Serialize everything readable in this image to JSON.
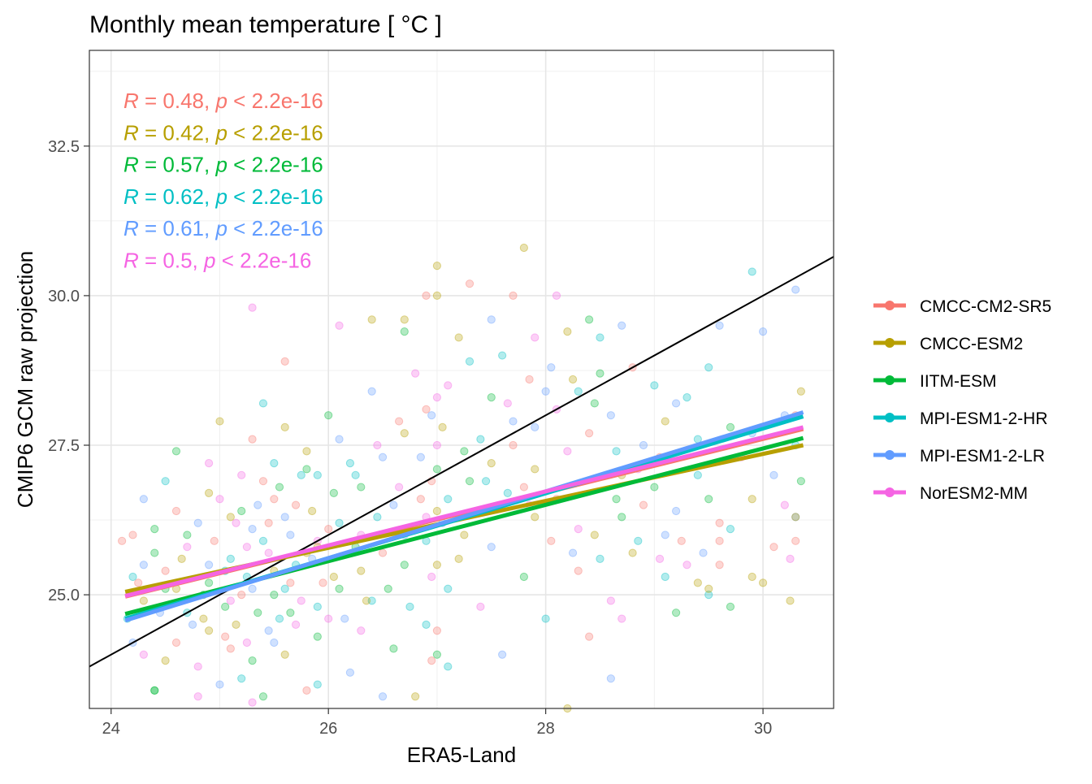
{
  "chart_data": {
    "type": "scatter",
    "title": "Monthly mean temperature [ °C ]",
    "xlabel": "ERA5-Land",
    "ylabel": "CMIP6 GCM raw projection",
    "xlim": [
      23.8,
      30.65
    ],
    "ylim": [
      23.1,
      34.1
    ],
    "x_ticks": [
      24,
      26,
      28,
      30
    ],
    "x_tick_labels": [
      "24",
      "26",
      "28",
      "30"
    ],
    "y_ticks": [
      25.0,
      27.5,
      30.0,
      32.5
    ],
    "y_tick_labels": [
      "25.0",
      "27.5",
      "30.0",
      "32.5"
    ],
    "grid": true,
    "theme": "bw",
    "legend_position": "right",
    "point_alpha": 0.3,
    "identity_line": {
      "slope": 1,
      "intercept": 0,
      "color": "#000000"
    },
    "series": [
      {
        "name": "CMCC-CM2-SR5",
        "color": "#F8766D",
        "fit_x": [
          24.13,
          30.37
        ],
        "fit_y": [
          24.97,
          27.77
        ],
        "stat_label": [
          "R",
          " = 0.48, ",
          "p",
          " < 2.2e-16"
        ]
      },
      {
        "name": "CMCC-ESM2",
        "color": "#B79F00",
        "fit_x": [
          24.13,
          30.37
        ],
        "fit_y": [
          25.05,
          27.5
        ],
        "stat_label": [
          "R",
          " = 0.42, ",
          "p",
          " < 2.2e-16"
        ]
      },
      {
        "name": "IITM-ESM",
        "color": "#00BA38",
        "fit_x": [
          24.13,
          30.37
        ],
        "fit_y": [
          24.68,
          27.62
        ],
        "stat_label": [
          "R",
          " = 0.57, ",
          "p",
          " < 2.2e-16"
        ]
      },
      {
        "name": "MPI-ESM1-2-HR",
        "color": "#00BFC4",
        "fit_x": [
          24.13,
          30.37
        ],
        "fit_y": [
          24.6,
          27.98
        ],
        "stat_label": [
          "R",
          " = 0.62, ",
          "p",
          " < 2.2e-16"
        ]
      },
      {
        "name": "MPI-ESM1-2-LR",
        "color": "#619CFF",
        "fit_x": [
          24.13,
          30.37
        ],
        "fit_y": [
          24.57,
          28.05
        ],
        "stat_label": [
          "R",
          " = 0.61, ",
          "p",
          " < 2.2e-16"
        ]
      },
      {
        "name": "NorESM2-MM",
        "color": "#F564E3",
        "fit_x": [
          24.13,
          30.37
        ],
        "fit_y": [
          24.98,
          27.8
        ],
        "stat_label": [
          "R",
          " = 0.5, ",
          "p",
          " < 2.2e-16"
        ]
      }
    ],
    "points": [
      [
        25.3,
        29.8,
        5
      ],
      [
        27.8,
        30.8,
        1
      ],
      [
        27.0,
        30.5,
        1
      ],
      [
        26.9,
        30.0,
        0
      ],
      [
        27.0,
        30.0,
        1
      ],
      [
        29.9,
        30.4,
        3
      ],
      [
        30.3,
        30.1,
        4
      ],
      [
        30.0,
        29.4,
        4
      ],
      [
        29.6,
        29.5,
        4
      ],
      [
        28.4,
        29.6,
        2
      ],
      [
        27.3,
        30.2,
        0
      ],
      [
        27.7,
        30.0,
        0
      ],
      [
        28.1,
        30.0,
        5
      ],
      [
        26.4,
        29.6,
        1
      ],
      [
        26.7,
        29.6,
        1
      ],
      [
        28.2,
        29.4,
        1
      ],
      [
        28.5,
        29.3,
        3
      ],
      [
        27.9,
        29.3,
        5
      ],
      [
        28.7,
        29.5,
        4
      ],
      [
        24.2,
        26.0,
        0
      ],
      [
        24.1,
        25.9,
        0
      ],
      [
        24.4,
        26.1,
        2
      ],
      [
        24.6,
        26.4,
        0
      ],
      [
        24.9,
        26.7,
        1
      ],
      [
        25.2,
        27.0,
        5
      ],
      [
        25.5,
        27.2,
        3
      ],
      [
        25.8,
        27.4,
        1
      ],
      [
        26.1,
        27.6,
        4
      ],
      [
        24.3,
        25.5,
        4
      ],
      [
        24.5,
        25.1,
        2
      ],
      [
        24.7,
        24.7,
        3
      ],
      [
        24.9,
        24.4,
        1
      ],
      [
        25.1,
        24.1,
        0
      ],
      [
        25.3,
        23.9,
        2
      ],
      [
        25.5,
        24.2,
        4
      ],
      [
        25.7,
        24.5,
        5
      ],
      [
        25.9,
        24.8,
        3
      ],
      [
        26.1,
        25.1,
        2
      ],
      [
        26.3,
        25.4,
        1
      ],
      [
        26.5,
        25.7,
        0
      ],
      [
        26.7,
        26.0,
        4
      ],
      [
        26.9,
        26.3,
        5
      ],
      [
        27.1,
        26.6,
        3
      ],
      [
        27.3,
        26.9,
        2
      ],
      [
        27.5,
        27.2,
        1
      ],
      [
        27.7,
        27.5,
        0
      ],
      [
        27.9,
        27.8,
        4
      ],
      [
        28.1,
        28.1,
        5
      ],
      [
        28.3,
        28.4,
        3
      ],
      [
        28.5,
        28.7,
        2
      ],
      [
        28.7,
        27.0,
        1
      ],
      [
        28.9,
        26.5,
        0
      ],
      [
        29.1,
        26.0,
        4
      ],
      [
        29.3,
        25.5,
        5
      ],
      [
        29.5,
        25.0,
        3
      ],
      [
        29.7,
        24.8,
        2
      ],
      [
        29.9,
        25.3,
        1
      ],
      [
        30.1,
        25.8,
        0
      ],
      [
        30.3,
        26.3,
        4
      ],
      [
        30.35,
        26.9,
        2
      ],
      [
        30.3,
        27.5,
        3
      ],
      [
        30.2,
        28.0,
        4
      ],
      [
        30.35,
        28.4,
        1
      ],
      [
        29.8,
        27.3,
        5
      ],
      [
        29.6,
        26.2,
        0
      ],
      [
        29.4,
        27.6,
        3
      ],
      [
        29.2,
        28.2,
        4
      ],
      [
        29.0,
        26.8,
        2
      ],
      [
        28.8,
        25.7,
        1
      ],
      [
        28.6,
        24.9,
        5
      ],
      [
        28.4,
        24.3,
        0
      ],
      [
        28.2,
        23.1,
        1
      ],
      [
        28.0,
        24.6,
        3
      ],
      [
        27.8,
        25.3,
        2
      ],
      [
        27.6,
        24.0,
        4
      ],
      [
        27.4,
        24.8,
        5
      ],
      [
        27.2,
        25.6,
        1
      ],
      [
        27.0,
        24.4,
        0
      ],
      [
        26.8,
        23.3,
        1
      ],
      [
        26.6,
        24.1,
        2
      ],
      [
        26.4,
        24.9,
        3
      ],
      [
        26.2,
        23.7,
        4
      ],
      [
        26.0,
        24.6,
        5
      ],
      [
        25.8,
        23.4,
        0
      ],
      [
        25.6,
        24.0,
        1
      ],
      [
        25.4,
        23.3,
        2
      ],
      [
        25.2,
        23.6,
        3
      ],
      [
        25.0,
        23.5,
        4
      ],
      [
        24.8,
        23.8,
        5
      ],
      [
        24.6,
        24.2,
        0
      ],
      [
        24.4,
        23.4,
        2
      ],
      [
        24.2,
        24.2,
        4
      ],
      [
        24.15,
        24.6,
        3
      ],
      [
        24.3,
        24.9,
        1
      ],
      [
        24.5,
        25.4,
        0
      ],
      [
        24.7,
        25.8,
        5
      ],
      [
        24.9,
        25.2,
        2
      ],
      [
        25.1,
        25.6,
        3
      ],
      [
        25.3,
        26.1,
        4
      ],
      [
        25.5,
        25.4,
        1
      ],
      [
        25.7,
        26.5,
        0
      ],
      [
        25.9,
        25.9,
        5
      ],
      [
        26.1,
        26.2,
        3
      ],
      [
        26.3,
        26.8,
        2
      ],
      [
        26.5,
        27.3,
        4
      ],
      [
        26.7,
        27.7,
        1
      ],
      [
        26.9,
        28.1,
        0
      ],
      [
        27.1,
        28.5,
        5
      ],
      [
        27.3,
        28.9,
        3
      ],
      [
        27.5,
        28.3,
        2
      ],
      [
        27.7,
        27.9,
        4
      ],
      [
        27.9,
        27.1,
        1
      ],
      [
        28.1,
        26.6,
        0
      ],
      [
        28.3,
        26.1,
        5
      ],
      [
        28.5,
        25.6,
        3
      ],
      [
        28.7,
        26.3,
        2
      ],
      [
        28.9,
        27.5,
        4
      ],
      [
        29.1,
        27.9,
        1
      ],
      [
        29.3,
        28.3,
        3
      ],
      [
        29.5,
        28.8,
        3
      ],
      [
        29.7,
        27.8,
        2
      ],
      [
        29.9,
        26.6,
        1
      ],
      [
        30.1,
        27.0,
        4
      ],
      [
        30.2,
        26.5,
        5
      ],
      [
        29.6,
        25.9,
        0
      ],
      [
        29.4,
        25.2,
        1
      ],
      [
        29.2,
        24.7,
        2
      ],
      [
        28.6,
        23.6,
        4
      ],
      [
        27.1,
        23.8,
        3
      ],
      [
        26.5,
        23.3,
        4
      ],
      [
        26.3,
        24.4,
        5
      ],
      [
        25.9,
        24.3,
        2
      ],
      [
        25.6,
        25.1,
        3
      ],
      [
        25.2,
        25.0,
        0
      ],
      [
        24.9,
        25.5,
        4
      ],
      [
        24.6,
        25.1,
        1
      ],
      [
        24.4,
        25.7,
        2
      ],
      [
        24.2,
        25.3,
        3
      ],
      [
        24.8,
        26.2,
        4
      ],
      [
        25.0,
        26.6,
        5
      ],
      [
        25.4,
        26.9,
        0
      ],
      [
        25.8,
        27.1,
        2
      ],
      [
        26.2,
        27.2,
        3
      ],
      [
        26.6,
        26.5,
        4
      ],
      [
        27.0,
        27.1,
        2
      ],
      [
        27.4,
        27.6,
        3
      ],
      [
        27.8,
        26.8,
        0
      ],
      [
        28.2,
        27.4,
        5
      ],
      [
        28.6,
        28.0,
        4
      ],
      [
        29.0,
        28.5,
        3
      ],
      [
        28.8,
        28.8,
        0
      ],
      [
        27.6,
        29.0,
        3
      ],
      [
        27.2,
        29.3,
        1
      ],
      [
        26.8,
        28.7,
        5
      ],
      [
        26.4,
        28.4,
        4
      ],
      [
        26.0,
        28.0,
        2
      ],
      [
        25.6,
        27.8,
        1
      ],
      [
        25.3,
        27.6,
        0
      ],
      [
        24.9,
        27.2,
        5
      ],
      [
        24.5,
        26.9,
        3
      ],
      [
        24.3,
        26.6,
        4
      ],
      [
        24.7,
        26.0,
        2
      ],
      [
        25.1,
        26.3,
        1
      ],
      [
        25.5,
        26.6,
        0
      ],
      [
        25.9,
        27.0,
        3
      ],
      [
        26.3,
        26.0,
        5
      ],
      [
        26.7,
        25.5,
        2
      ],
      [
        27.1,
        25.1,
        3
      ],
      [
        27.5,
        25.8,
        4
      ],
      [
        27.9,
        26.3,
        1
      ],
      [
        28.3,
        25.4,
        0
      ],
      [
        28.7,
        24.6,
        5
      ],
      [
        29.1,
        25.3,
        3
      ],
      [
        29.5,
        26.6,
        2
      ],
      [
        29.9,
        27.7,
        4
      ],
      [
        30.3,
        28.0,
        0
      ],
      [
        30.25,
        24.9,
        1
      ],
      [
        30.25,
        25.6,
        5
      ],
      [
        29.4,
        27.0,
        3
      ],
      [
        29.2,
        26.4,
        4
      ],
      [
        28.4,
        27.7,
        0
      ],
      [
        28.0,
        28.4,
        4
      ],
      [
        27.5,
        29.6,
        4
      ],
      [
        26.7,
        29.4,
        2
      ],
      [
        26.1,
        29.5,
        5
      ],
      [
        25.6,
        28.9,
        0
      ],
      [
        25.4,
        28.2,
        3
      ],
      [
        25.0,
        27.9,
        1
      ],
      [
        24.6,
        27.4,
        2
      ],
      [
        24.3,
        24.0,
        5
      ],
      [
        24.5,
        23.9,
        1
      ],
      [
        24.75,
        24.5,
        4
      ],
      [
        25.05,
        24.8,
        2
      ],
      [
        25.25,
        25.3,
        3
      ],
      [
        25.45,
        25.7,
        5
      ],
      [
        25.65,
        25.2,
        0
      ],
      [
        25.85,
        25.6,
        4
      ],
      [
        26.05,
        25.3,
        1
      ],
      [
        26.25,
        25.8,
        2
      ],
      [
        26.45,
        26.3,
        3
      ],
      [
        26.65,
        26.8,
        5
      ],
      [
        26.85,
        26.6,
        0
      ],
      [
        27.05,
        26.2,
        4
      ],
      [
        27.25,
        26.0,
        1
      ],
      [
        27.45,
        26.4,
        2
      ],
      [
        27.65,
        26.7,
        3
      ],
      [
        27.85,
        26.5,
        5
      ],
      [
        28.05,
        25.9,
        0
      ],
      [
        28.25,
        25.7,
        4
      ],
      [
        28.45,
        26.0,
        1
      ],
      [
        28.65,
        26.6,
        2
      ],
      [
        28.85,
        25.9,
        3
      ],
      [
        29.05,
        25.6,
        5
      ],
      [
        29.25,
        25.9,
        0
      ],
      [
        29.45,
        25.7,
        4
      ],
      [
        25.15,
        24.5,
        1
      ],
      [
        25.35,
        24.7,
        2
      ],
      [
        25.55,
        24.6,
        3
      ],
      [
        25.75,
        24.9,
        5
      ],
      [
        25.95,
        25.2,
        0
      ],
      [
        26.15,
        24.6,
        4
      ],
      [
        26.35,
        24.9,
        1
      ],
      [
        26.55,
        25.1,
        2
      ],
      [
        26.75,
        24.8,
        3
      ],
      [
        26.95,
        25.3,
        5
      ],
      [
        24.25,
        25.2,
        0
      ],
      [
        24.45,
        24.7,
        4
      ],
      [
        24.65,
        25.6,
        1
      ],
      [
        24.85,
        25.0,
        2
      ],
      [
        25.05,
        25.4,
        3
      ],
      [
        25.25,
        25.8,
        5
      ],
      [
        25.45,
        26.2,
        0
      ],
      [
        25.65,
        26.0,
        4
      ],
      [
        25.85,
        26.4,
        1
      ],
      [
        26.05,
        26.7,
        2
      ],
      [
        26.25,
        27.0,
        3
      ],
      [
        26.45,
        27.5,
        5
      ],
      [
        26.65,
        27.9,
        0
      ],
      [
        26.85,
        27.3,
        4
      ],
      [
        27.05,
        27.8,
        1
      ],
      [
        27.25,
        27.4,
        2
      ],
      [
        27.45,
        26.9,
        3
      ],
      [
        27.65,
        28.2,
        5
      ],
      [
        27.85,
        28.6,
        0
      ],
      [
        28.05,
        28.8,
        4
      ],
      [
        28.25,
        28.6,
        1
      ],
      [
        28.45,
        28.2,
        2
      ],
      [
        28.65,
        27.4,
        3
      ],
      [
        28.85,
        27.1,
        5
      ],
      [
        29.05,
        27.3,
        0
      ],
      [
        25.2,
        26.4,
        2
      ],
      [
        25.4,
        25.9,
        3
      ],
      [
        25.6,
        26.3,
        4
      ],
      [
        25.8,
        25.7,
        1
      ],
      [
        26.0,
        26.1,
        0
      ],
      [
        25.1,
        24.9,
        5
      ],
      [
        25.3,
        25.1,
        4
      ],
      [
        25.5,
        25.0,
        2
      ],
      [
        25.7,
        25.5,
        3
      ],
      [
        25.9,
        25.8,
        1
      ],
      [
        24.95,
        25.9,
        0
      ],
      [
        25.15,
        26.2,
        5
      ],
      [
        25.35,
        26.5,
        4
      ],
      [
        25.55,
        26.8,
        2
      ],
      [
        25.75,
        27.0,
        3
      ],
      [
        24.85,
        24.6,
        1
      ],
      [
        25.05,
        24.3,
        0
      ],
      [
        25.25,
        24.2,
        5
      ],
      [
        25.45,
        24.4,
        4
      ],
      [
        25.65,
        24.7,
        2
      ],
      [
        26.9,
        24.5,
        3
      ],
      [
        27.0,
        25.5,
        1
      ],
      [
        26.95,
        26.9,
        0
      ],
      [
        27.0,
        27.5,
        5
      ],
      [
        26.95,
        28.0,
        4
      ],
      [
        27.0,
        24.0,
        2
      ],
      [
        26.9,
        25.9,
        3
      ],
      [
        27.0,
        26.4,
        1
      ],
      [
        26.95,
        23.9,
        0
      ],
      [
        27.0,
        28.3,
        5
      ],
      [
        25.9,
        23.5,
        3
      ],
      [
        25.3,
        23.2,
        5
      ],
      [
        24.4,
        23.4,
        2
      ],
      [
        24.8,
        23.3,
        5
      ],
      [
        29.5,
        25.1,
        1
      ],
      [
        30.0,
        25.2,
        1
      ],
      [
        30.3,
        25.9,
        0
      ],
      [
        30.3,
        26.3,
        1
      ],
      [
        29.7,
        26.1,
        3
      ],
      [
        29.6,
        25.5,
        0
      ]
    ]
  }
}
